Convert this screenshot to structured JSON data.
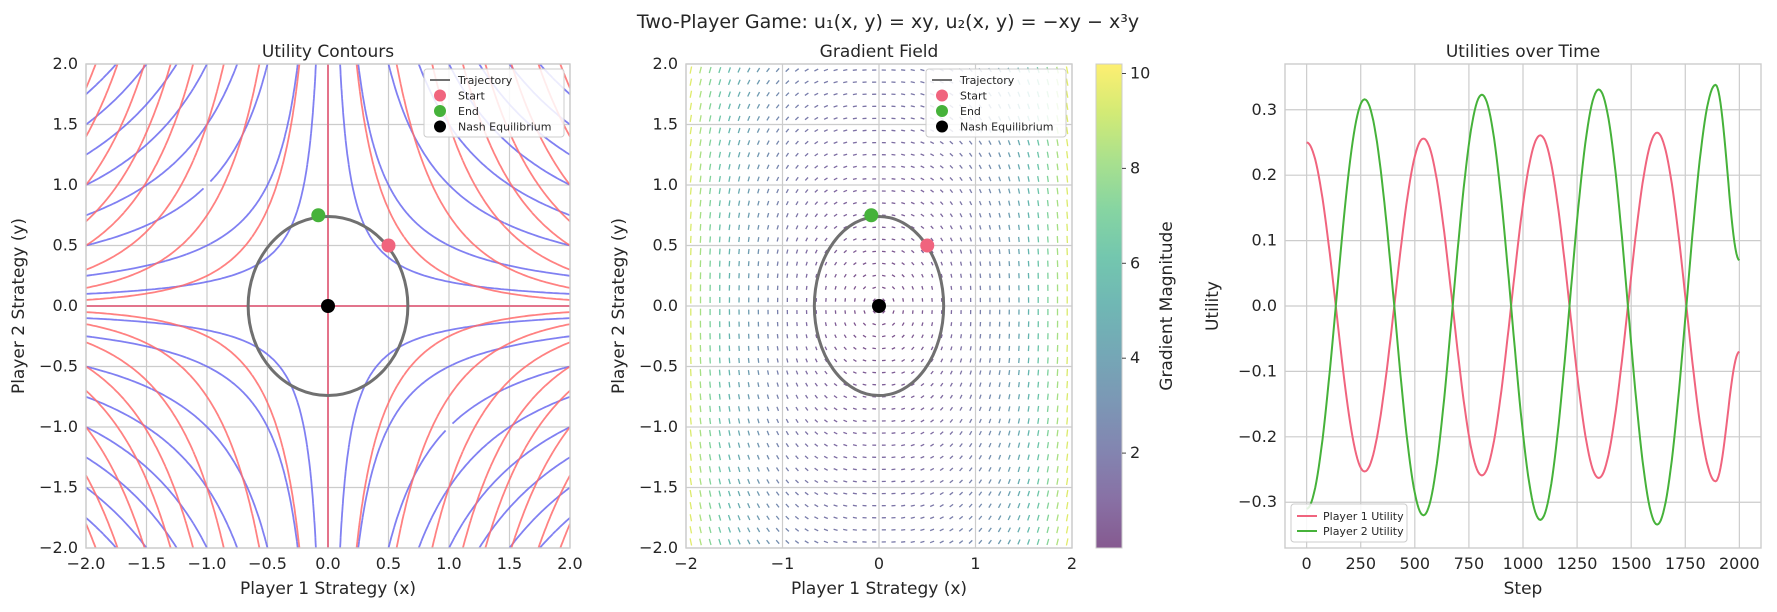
{
  "figure": {
    "suptitle": "Two-Player Game: u₁(x, y) = xy, u₂(x, y) = −xy − x³y"
  },
  "chart_data": [
    {
      "type": "contour",
      "title": "Utility Contours",
      "xlabel": "Player 1 Strategy (x)",
      "ylabel": "Player 2 Strategy (y)",
      "xlim": [
        -2,
        2
      ],
      "ylim": [
        -2,
        2
      ],
      "xticks": [
        "−2.0",
        "−1.5",
        "−1.0",
        "−0.5",
        "0.0",
        "0.5",
        "1.0",
        "1.5",
        "2.0"
      ],
      "yticks": [
        "−2.0",
        "−1.5",
        "−1.0",
        "−0.5",
        "0.0",
        "0.5",
        "1.0",
        "1.5",
        "2.0"
      ],
      "grid": true,
      "legend": {
        "position": "upper right",
        "entries": [
          "Trajectory",
          "Start",
          "End",
          "Nash Equilibrium"
        ]
      },
      "contours": [
        {
          "function": "x*y",
          "style": "solid",
          "color": "#6a6af0",
          "levels": [
            -3.5,
            -3,
            -2.5,
            -2,
            -1.5,
            -1,
            -0.5,
            -0.2,
            0,
            0.2,
            0.5,
            1,
            1.5,
            2,
            2.5,
            3,
            3.5
          ]
        },
        {
          "function": "-x*y - x^3*y",
          "style": "dashed",
          "color": "#ff6b6b",
          "levels": [
            -18,
            -14,
            -10,
            -7,
            -5,
            -3,
            -1.5,
            -0.5,
            0,
            0.5,
            1.5,
            3,
            5,
            7,
            10,
            14,
            18
          ]
        }
      ],
      "trajectory": {
        "color": "#707070",
        "center": [
          0,
          0
        ],
        "rx": 0.66,
        "ry": 0.74
      },
      "start": {
        "x": 0.5,
        "y": 0.5,
        "color": "#f0647e"
      },
      "end": {
        "x": -0.08,
        "y": 0.75,
        "color": "#46b23a"
      },
      "nash": {
        "x": 0,
        "y": 0,
        "color": "#000000"
      }
    },
    {
      "type": "quiver",
      "title": "Gradient Field",
      "xlabel": "Player 1 Strategy (x)",
      "ylabel": "Player 2 Strategy (y)",
      "xlim": [
        -2,
        2
      ],
      "ylim": [
        -2,
        2
      ],
      "xticks": [
        "−2",
        "−1",
        "0",
        "1",
        "2"
      ],
      "yticks": [
        "−2.0",
        "−1.5",
        "−1.0",
        "−0.5",
        "0.0",
        "0.5",
        "1.0",
        "1.5",
        "2.0"
      ],
      "grid": true,
      "field": {
        "u": "y",
        "v": "-x - x^3",
        "grid_n": 40
      },
      "colorbar": {
        "label": "Gradient Magnitude",
        "min": 0,
        "max": 10.2,
        "ticks": [
          "2",
          "4",
          "6",
          "8",
          "10"
        ],
        "colormap": "viridis"
      },
      "legend": {
        "position": "upper right",
        "entries": [
          "Trajectory",
          "Start",
          "End",
          "Nash Equilibrium"
        ]
      },
      "trajectory": {
        "color": "#707070",
        "center": [
          0,
          0
        ],
        "rx": 0.67,
        "ry": 0.74
      },
      "start": {
        "x": 0.5,
        "y": 0.5,
        "color": "#f0647e"
      },
      "end": {
        "x": -0.08,
        "y": 0.75,
        "color": "#46b23a"
      },
      "nash": {
        "x": 0,
        "y": 0,
        "color": "#000000"
      }
    },
    {
      "type": "line",
      "title": "Utilities over Time",
      "xlabel": "Step",
      "ylabel": "Utility",
      "xlim": [
        -100,
        2100
      ],
      "ylim": [
        -0.37,
        0.37
      ],
      "xticks": [
        "0",
        "250",
        "500",
        "750",
        "1000",
        "1250",
        "1500",
        "1750",
        "2000"
      ],
      "yticks": [
        "−0.3",
        "−0.2",
        "−0.1",
        "0.0",
        "0.1",
        "0.2",
        "0.3"
      ],
      "grid": true,
      "legend": {
        "position": "lower left",
        "entries": [
          "Player 1 Utility",
          "Player 2 Utility"
        ]
      },
      "series": [
        {
          "name": "Player 1 Utility",
          "color": "#f0647e",
          "x": [
            0,
            135,
            268,
            405,
            540,
            675,
            810,
            945,
            1080,
            1215,
            1350,
            1485,
            1620,
            1755,
            1890,
            2000
          ],
          "y": [
            0.25,
            0.0,
            -0.253,
            0.0,
            0.256,
            0.0,
            -0.259,
            0.0,
            0.261,
            0.0,
            -0.263,
            0.0,
            0.265,
            0.0,
            -0.268,
            -0.07
          ]
        },
        {
          "name": "Player 2 Utility",
          "color": "#46b23a",
          "x": [
            0,
            135,
            268,
            405,
            540,
            675,
            810,
            945,
            1080,
            1215,
            1350,
            1485,
            1620,
            1755,
            1890,
            2000
          ],
          "y": [
            -0.31,
            0.0,
            0.316,
            0.0,
            -0.32,
            0.0,
            0.323,
            0.0,
            -0.327,
            0.0,
            0.331,
            0.0,
            -0.334,
            0.0,
            0.338,
            0.07
          ]
        }
      ]
    }
  ]
}
